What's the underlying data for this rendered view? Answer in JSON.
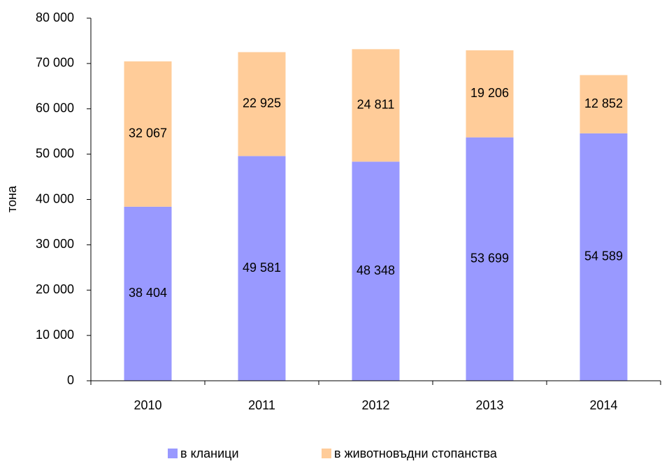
{
  "chart_data": {
    "type": "stacked_bar",
    "y_label": "тона",
    "categories": [
      "2010",
      "2011",
      "2012",
      "2013",
      "2014"
    ],
    "series": [
      {
        "name": "в кланици",
        "color": "#9999ff",
        "values": [
          38404,
          49581,
          48348,
          53699,
          54589
        ],
        "value_labels": [
          "38 404",
          "49 581",
          "48 348",
          "53 699",
          "54 589"
        ]
      },
      {
        "name": "в животновъдни стопанства",
        "color": "#ffcc99",
        "values": [
          32067,
          22925,
          24811,
          19206,
          12852
        ],
        "value_labels": [
          "32 067",
          "22 925",
          "24 811",
          "19 206",
          "12 852"
        ]
      }
    ],
    "ylim": [
      0,
      80000
    ],
    "yticks": [
      0,
      {
        "value": 10000,
        "label": "10 000"
      },
      {
        "value": 20000,
        "label": "20 000"
      },
      {
        "value": 30000,
        "label": "30 000"
      },
      {
        "value": 40000,
        "label": "40 000"
      },
      {
        "value": 50000,
        "label": "50 000"
      },
      {
        "value": 60000,
        "label": "60 000"
      },
      {
        "value": 70000,
        "label": "70 000"
      },
      {
        "value": 80000,
        "label": "80 000"
      }
    ],
    "legend": "bottom"
  }
}
